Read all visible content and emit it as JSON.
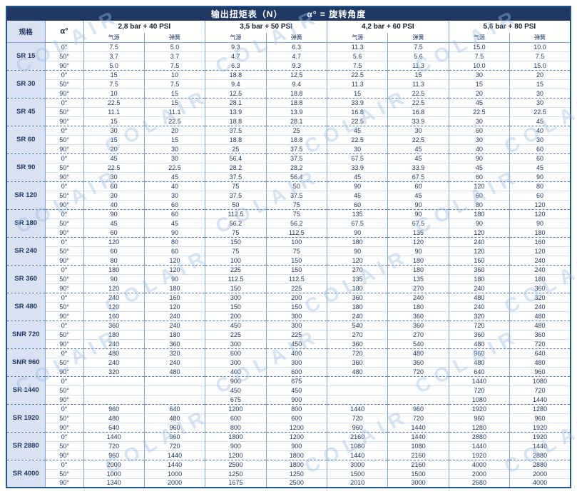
{
  "title": {
    "main": "输出扭矩表（N）",
    "note": "α° = 旋转角度"
  },
  "watermark": "COLAIR",
  "header": {
    "spec": "规格",
    "alpha": "α°",
    "pressure_groups": [
      {
        "label": "2,8 bar + 40 PSI",
        "sub": [
          "气源",
          "弹簧"
        ]
      },
      {
        "label": "3,5 bar + 50 PSI",
        "sub": [
          "气源",
          "弹簧"
        ]
      },
      {
        "label": "4,2 bar + 60 PSI",
        "sub": [
          "气源",
          "弹簧"
        ]
      },
      {
        "label": "5,6 bar + 80 PSI",
        "sub": [
          "气源",
          "弹簧"
        ]
      }
    ]
  },
  "rows": [
    {
      "spec": "SR 15",
      "data": [
        [
          "0°",
          "7.5",
          "5.0",
          "9.3",
          "6.3",
          "11.3",
          "7.5",
          "15.0",
          "10.0"
        ],
        [
          "50°",
          "3.7",
          "3.7",
          "4.7",
          "4.7",
          "5.6",
          "5.6",
          "7.5",
          "7.5"
        ],
        [
          "90°",
          "5.0",
          "7.5",
          "6.3",
          "9.3",
          "7.5",
          "11.3",
          "10.0",
          "15.0"
        ]
      ]
    },
    {
      "spec": "SR 30",
      "data": [
        [
          "0°",
          "15",
          "10",
          "18.8",
          "12.5",
          "22.5",
          "15",
          "30",
          "20"
        ],
        [
          "50°",
          "7.5",
          "7.5",
          "9.4",
          "9.4",
          "11.3",
          "11.3",
          "15",
          "15"
        ],
        [
          "90°",
          "10",
          "15",
          "12.5",
          "18.8",
          "15",
          "22.5",
          "20",
          "30"
        ]
      ]
    },
    {
      "spec": "SR 45",
      "data": [
        [
          "0°",
          "22.5",
          "15",
          "28.1",
          "18.8",
          "33.9",
          "22.5",
          "45",
          "30"
        ],
        [
          "50°",
          "11.1",
          "11.1",
          "13.9",
          "13.9",
          "16.8",
          "16.8",
          "22.5",
          "22.5"
        ],
        [
          "90°",
          "15",
          "22.5",
          "18.8",
          "28.1",
          "22.5",
          "33.9",
          "30",
          "45"
        ]
      ]
    },
    {
      "spec": "SR 60",
      "data": [
        [
          "0°",
          "30",
          "20",
          "37.5",
          "25",
          "45",
          "30",
          "60",
          "40"
        ],
        [
          "50°",
          "15",
          "15",
          "18.8",
          "18.8",
          "22.5",
          "22.5",
          "30",
          "30"
        ],
        [
          "90°",
          "20",
          "30",
          "25",
          "37.5",
          "30",
          "45",
          "40",
          "60"
        ]
      ]
    },
    {
      "spec": "SR 90",
      "data": [
        [
          "0°",
          "45",
          "30",
          "56.4",
          "37.5",
          "67.5",
          "45",
          "90",
          "60"
        ],
        [
          "50°",
          "22.5",
          "22.5",
          "28.2",
          "28.2",
          "33.9",
          "33.9",
          "45",
          "45"
        ],
        [
          "90°",
          "30",
          "45",
          "37.5",
          "56.4",
          "45",
          "67.5",
          "60",
          "90"
        ]
      ]
    },
    {
      "spec": "SR 120",
      "data": [
        [
          "0°",
          "60",
          "40",
          "75",
          "50",
          "90",
          "60",
          "120",
          "80"
        ],
        [
          "50°",
          "30",
          "30",
          "37.5",
          "37.5",
          "45",
          "45",
          "60",
          "60"
        ],
        [
          "90°",
          "40",
          "60",
          "50",
          "75",
          "60",
          "90",
          "80",
          "120"
        ]
      ]
    },
    {
      "spec": "SR 180",
      "data": [
        [
          "0°",
          "90",
          "60",
          "112.5",
          "75",
          "135",
          "90",
          "180",
          "120"
        ],
        [
          "50°",
          "45",
          "45",
          "56.2",
          "56.2",
          "67.5",
          "67.5",
          "90",
          "90"
        ],
        [
          "90°",
          "60",
          "90",
          "75",
          "112.5",
          "90",
          "135",
          "120",
          "180"
        ]
      ]
    },
    {
      "spec": "SR 240",
      "data": [
        [
          "0°",
          "120",
          "80",
          "150",
          "100",
          "180",
          "120",
          "240",
          "160"
        ],
        [
          "50°",
          "60",
          "60",
          "75",
          "75",
          "90",
          "90",
          "120",
          "120"
        ],
        [
          "90°",
          "80",
          "120",
          "100",
          "150",
          "120",
          "180",
          "160",
          "240"
        ]
      ]
    },
    {
      "spec": "SR 360",
      "data": [
        [
          "0°",
          "180",
          "120",
          "225",
          "150",
          "270",
          "180",
          "360",
          "240"
        ],
        [
          "50°",
          "90",
          "90",
          "112.5",
          "112.5",
          "135",
          "135",
          "180",
          "180"
        ],
        [
          "90°",
          "120",
          "180",
          "150",
          "225",
          "180",
          "270",
          "240",
          "360"
        ]
      ]
    },
    {
      "spec": "SR 480",
      "data": [
        [
          "0°",
          "240",
          "160",
          "300",
          "200",
          "360",
          "240",
          "480",
          "320"
        ],
        [
          "50°",
          "120",
          "120",
          "150",
          "150",
          "180",
          "180",
          "240",
          "240"
        ],
        [
          "90°",
          "160",
          "240",
          "200",
          "300",
          "240",
          "360",
          "320",
          "480"
        ]
      ]
    },
    {
      "spec": "SNR 720",
      "data": [
        [
          "0°",
          "360",
          "240",
          "450",
          "300",
          "540",
          "360",
          "720",
          "480"
        ],
        [
          "50°",
          "180",
          "180",
          "225",
          "225",
          "270",
          "270",
          "360",
          "360"
        ],
        [
          "90°",
          "240",
          "360",
          "300",
          "450",
          "360",
          "540",
          "480",
          "720"
        ]
      ]
    },
    {
      "spec": "SNR 960",
      "data": [
        [
          "0°",
          "480",
          "320",
          "600",
          "400",
          "720",
          "480",
          "960",
          "640"
        ],
        [
          "50°",
          "240",
          "240",
          "300",
          "300",
          "360",
          "360",
          "480",
          "480"
        ],
        [
          "90°",
          "320",
          "480",
          "400",
          "600",
          "480",
          "720",
          "640",
          "960"
        ]
      ]
    },
    {
      "spec": "SR 1440",
      "data": [
        [
          "0°",
          "",
          "",
          "900",
          "675",
          "",
          "",
          "1440",
          "1080"
        ],
        [
          "50°",
          "",
          "",
          "450",
          "450",
          "",
          "",
          "720",
          "720"
        ],
        [
          "90°",
          "",
          "",
          "675",
          "900",
          "",
          "",
          "1080",
          "1440"
        ]
      ]
    },
    {
      "spec": "SR 1920",
      "data": [
        [
          "0°",
          "960",
          "640",
          "1200",
          "800",
          "1440",
          "960",
          "1920",
          "1280"
        ],
        [
          "50°",
          "480",
          "480",
          "600",
          "600",
          "720",
          "720",
          "960",
          "960"
        ],
        [
          "90°",
          "640",
          "960",
          "800",
          "1200",
          "960",
          "1440",
          "1280",
          "1920"
        ]
      ]
    },
    {
      "spec": "SR 2880",
      "data": [
        [
          "0°",
          "1440",
          "960",
          "1800",
          "1200",
          "2160",
          "1440",
          "2880",
          "1920"
        ],
        [
          "50°",
          "720",
          "720",
          "900",
          "900",
          "1080",
          "1080",
          "1440",
          "1440"
        ],
        [
          "90°",
          "960",
          "1440",
          "1200",
          "1800",
          "1440",
          "2160",
          "1920",
          "2880"
        ]
      ]
    },
    {
      "spec": "SR 4000",
      "data": [
        [
          "0°",
          "2000",
          "1440",
          "2500",
          "1800",
          "3000",
          "2160",
          "4000",
          "2880"
        ],
        [
          "50°",
          "1000",
          "1000",
          "1250",
          "1250",
          "1500",
          "1500",
          "2000",
          "2000"
        ],
        [
          "90°",
          "1340",
          "2000",
          "1675",
          "2500",
          "2010",
          "3000",
          "2680",
          "4000"
        ]
      ]
    }
  ]
}
